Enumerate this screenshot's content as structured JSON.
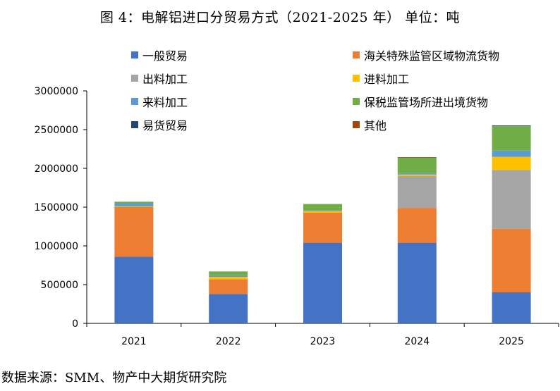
{
  "title": "图 4：电解铝进口分贸易方式（2021-2025 年） 单位：吨",
  "source": "数据来源：SMM、物产中大期货研究院",
  "chart_data": {
    "type": "bar",
    "stacked": true,
    "categories": [
      "2021",
      "2022",
      "2023",
      "2024",
      "2025"
    ],
    "ylim": [
      0,
      3000000
    ],
    "yticks": [
      0,
      500000,
      1000000,
      1500000,
      2000000,
      2500000,
      3000000
    ],
    "ytick_labels": [
      "0",
      "500000",
      "1000000",
      "1500000",
      "2000000",
      "2500000",
      "3000000"
    ],
    "grid": false,
    "legend_position": "top",
    "series": [
      {
        "name": "一般贸易",
        "color": "#4472C4",
        "values": [
          860000,
          380000,
          1040000,
          1040000,
          400000
        ]
      },
      {
        "name": "海关特殊监管区域物流货物",
        "color": "#ED7D31",
        "values": [
          640000,
          190000,
          390000,
          450000,
          820000
        ]
      },
      {
        "name": "出料加工",
        "color": "#A5A5A5",
        "values": [
          0,
          0,
          0,
          410000,
          760000
        ]
      },
      {
        "name": "进料加工",
        "color": "#FFC000",
        "values": [
          10000,
          30000,
          20000,
          20000,
          170000
        ]
      },
      {
        "name": "来料加工",
        "color": "#5B9BD5",
        "values": [
          40000,
          20000,
          10000,
          20000,
          80000
        ]
      },
      {
        "name": "保税监管场所进出境货物",
        "color": "#70AD47",
        "values": [
          20000,
          50000,
          80000,
          200000,
          320000
        ]
      },
      {
        "name": "易货贸易",
        "color": "#264478",
        "values": [
          0,
          0,
          0,
          0,
          5000
        ]
      },
      {
        "name": "其他",
        "color": "#9E480E",
        "values": [
          0,
          0,
          0,
          5000,
          0
        ]
      }
    ]
  }
}
